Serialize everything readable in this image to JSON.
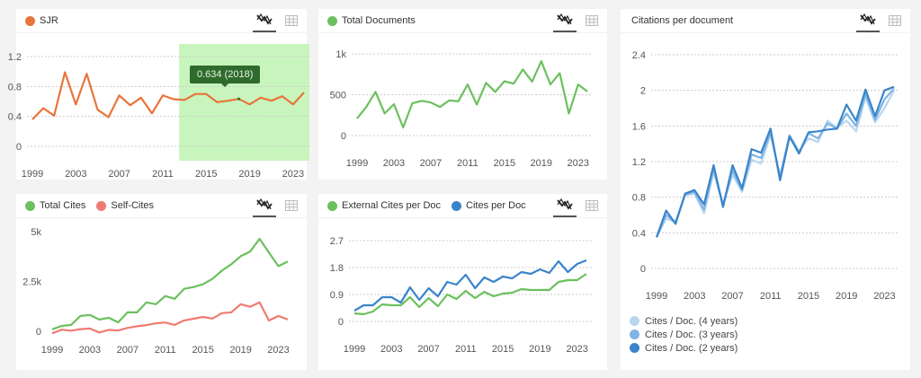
{
  "icons": {
    "line_view": "line-chart-icon",
    "table_view": "table-grid-icon"
  },
  "chart_data": [
    {
      "id": "sjr",
      "type": "line",
      "title": "",
      "legend": [
        {
          "name": "SJR",
          "color": "#e8743b"
        }
      ],
      "x": [
        1999,
        2000,
        2001,
        2002,
        2003,
        2004,
        2005,
        2006,
        2007,
        2008,
        2009,
        2010,
        2011,
        2012,
        2013,
        2014,
        2015,
        2016,
        2017,
        2018,
        2019,
        2020,
        2021,
        2022,
        2023,
        2024
      ],
      "xticks": [
        "1999",
        "2003",
        "2007",
        "2011",
        "2015",
        "2019",
        "2023"
      ],
      "yticks": [
        "0",
        "0.4",
        "0.8",
        "1.2"
      ],
      "ylim": [
        0,
        1.2
      ],
      "series": [
        {
          "name": "SJR",
          "color": "#e8743b",
          "values": [
            0.36,
            0.51,
            0.41,
            0.99,
            0.56,
            0.97,
            0.49,
            0.39,
            0.68,
            0.55,
            0.65,
            0.44,
            0.68,
            0.63,
            0.62,
            0.7,
            0.7,
            0.59,
            0.61,
            0.634,
            0.56,
            0.65,
            0.61,
            0.67,
            0.56,
            0.72
          ]
        }
      ],
      "highlight": {
        "from": 2012.5,
        "to": 2024.5,
        "color": "#c8f5bd"
      },
      "tooltip": {
        "text": "0.634 (2018)",
        "x": 2018,
        "y": 0.634
      }
    },
    {
      "id": "total-documents",
      "type": "line",
      "legend": [
        {
          "name": "Total Documents",
          "color": "#6cc05e"
        }
      ],
      "x": [
        1999,
        2000,
        2001,
        2002,
        2003,
        2004,
        2005,
        2006,
        2007,
        2008,
        2009,
        2010,
        2011,
        2012,
        2013,
        2014,
        2015,
        2016,
        2017,
        2018,
        2019,
        2020,
        2021,
        2022,
        2023,
        2024
      ],
      "xticks": [
        "1999",
        "2003",
        "2007",
        "2011",
        "2015",
        "2019",
        "2023"
      ],
      "yticks": [
        "0",
        "500",
        "1k"
      ],
      "ylim": [
        0,
        1000
      ],
      "series": [
        {
          "name": "Total Documents",
          "color": "#6cc05e",
          "values": [
            210,
            350,
            535,
            270,
            385,
            100,
            395,
            425,
            405,
            350,
            430,
            420,
            625,
            380,
            645,
            535,
            665,
            635,
            810,
            660,
            910,
            625,
            765,
            270,
            625,
            540
          ]
        }
      ]
    },
    {
      "id": "citations-per-document",
      "type": "line",
      "title": "Citations per document",
      "x": [
        1999,
        2000,
        2001,
        2002,
        2003,
        2004,
        2005,
        2006,
        2007,
        2008,
        2009,
        2010,
        2011,
        2012,
        2013,
        2014,
        2015,
        2016,
        2017,
        2018,
        2019,
        2020,
        2021,
        2022,
        2023,
        2024
      ],
      "xticks": [
        "1999",
        "2003",
        "2007",
        "2011",
        "2015",
        "2019",
        "2023"
      ],
      "yticks": [
        "0",
        "0.4",
        "0.8",
        "1.2",
        "1.6",
        "2",
        "2.4"
      ],
      "ylim": [
        0,
        2.4
      ],
      "legend_position": "bottom-left",
      "series": [
        {
          "name": "Cites / Doc. (4 years)",
          "color": "#b9d6f0",
          "values": [
            0.35,
            0.56,
            0.52,
            0.82,
            0.84,
            0.62,
            1.08,
            0.72,
            1.05,
            0.86,
            1.22,
            1.18,
            1.5,
            1.05,
            1.5,
            1.32,
            1.46,
            1.42,
            1.66,
            1.58,
            1.66,
            1.54,
            1.92,
            1.64,
            1.8,
            2.0
          ]
        },
        {
          "name": "Cites / Doc. (3 years)",
          "color": "#7eb4e2",
          "values": [
            0.35,
            0.6,
            0.52,
            0.83,
            0.86,
            0.66,
            1.12,
            0.71,
            1.1,
            0.88,
            1.28,
            1.24,
            1.53,
            1.02,
            1.49,
            1.3,
            1.52,
            1.46,
            1.63,
            1.57,
            1.74,
            1.6,
            1.96,
            1.67,
            1.9,
            2.02
          ]
        },
        {
          "name": "Cites / Doc. (2 years)",
          "color": "#3a84c9",
          "values": [
            0.35,
            0.65,
            0.5,
            0.84,
            0.88,
            0.72,
            1.16,
            0.69,
            1.16,
            0.9,
            1.34,
            1.3,
            1.57,
            0.99,
            1.48,
            1.29,
            1.53,
            1.54,
            1.56,
            1.57,
            1.84,
            1.66,
            2.01,
            1.71,
            2.0,
            2.04
          ]
        }
      ]
    },
    {
      "id": "total-cites",
      "type": "line",
      "legend": [
        {
          "name": "Total Cites",
          "color": "#6cc05e"
        },
        {
          "name": "Self-Cites",
          "color": "#ee7b72"
        }
      ],
      "x": [
        1999,
        2000,
        2001,
        2002,
        2003,
        2004,
        2005,
        2006,
        2007,
        2008,
        2009,
        2010,
        2011,
        2012,
        2013,
        2014,
        2015,
        2016,
        2017,
        2018,
        2019,
        2020,
        2021,
        2022,
        2023,
        2024
      ],
      "xticks": [
        "1999",
        "2003",
        "2007",
        "2011",
        "2015",
        "2019",
        "2023"
      ],
      "yticks": [
        "0",
        "2.5k",
        "5k"
      ],
      "ylim": [
        0,
        5000
      ],
      "series": [
        {
          "name": "Total Cites",
          "color": "#6cc05e",
          "values": [
            100,
            270,
            320,
            770,
            820,
            590,
            680,
            450,
            950,
            950,
            1450,
            1360,
            1770,
            1630,
            2130,
            2220,
            2360,
            2630,
            3040,
            3360,
            3770,
            4000,
            4640,
            3950,
            3270,
            3500
          ]
        },
        {
          "name": "Self-Cites",
          "color": "#ee7b72",
          "values": [
            -100,
            80,
            30,
            110,
            140,
            -60,
            70,
            40,
            170,
            250,
            310,
            400,
            440,
            320,
            545,
            630,
            720,
            640,
            910,
            950,
            1360,
            1230,
            1450,
            540,
            770,
            590
          ]
        }
      ]
    },
    {
      "id": "cites-per-doc",
      "type": "line",
      "legend": [
        {
          "name": "External Cites per Doc",
          "color": "#6cc05e"
        },
        {
          "name": "Cites per Doc",
          "color": "#3a84c9"
        }
      ],
      "x": [
        1999,
        2000,
        2001,
        2002,
        2003,
        2004,
        2005,
        2006,
        2007,
        2008,
        2009,
        2010,
        2011,
        2012,
        2013,
        2014,
        2015,
        2016,
        2017,
        2018,
        2019,
        2020,
        2021,
        2022,
        2023,
        2024
      ],
      "xticks": [
        "1999",
        "2003",
        "2007",
        "2011",
        "2015",
        "2019",
        "2023"
      ],
      "yticks": [
        "0",
        "0.9",
        "1.8",
        "2.7"
      ],
      "ylim": [
        0,
        2.7
      ],
      "series": [
        {
          "name": "External Cites per Doc",
          "color": "#6cc05e",
          "values": [
            0.27,
            0.24,
            0.33,
            0.57,
            0.54,
            0.54,
            0.81,
            0.48,
            0.78,
            0.51,
            0.9,
            0.75,
            1.02,
            0.78,
            0.99,
            0.84,
            0.93,
            0.96,
            1.08,
            1.05,
            1.05,
            1.05,
            1.32,
            1.38,
            1.38,
            1.59
          ]
        },
        {
          "name": "Cites per Doc",
          "color": "#3a84c9",
          "values": [
            0.36,
            0.54,
            0.54,
            0.81,
            0.81,
            0.63,
            1.14,
            0.72,
            1.11,
            0.84,
            1.32,
            1.23,
            1.56,
            1.11,
            1.47,
            1.32,
            1.5,
            1.44,
            1.65,
            1.59,
            1.74,
            1.62,
            2.01,
            1.65,
            1.92,
            2.04
          ]
        }
      ]
    }
  ]
}
